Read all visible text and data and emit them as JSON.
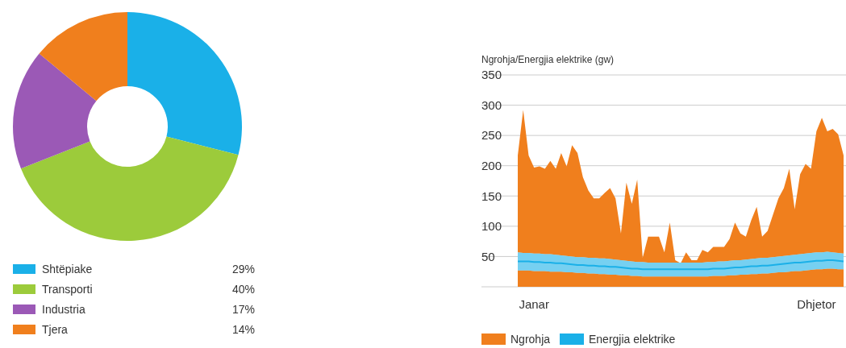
{
  "chart_data": [
    {
      "type": "donut",
      "categories": [
        "Shtëpiake",
        "Transporti",
        "Industria",
        "Tjera"
      ],
      "values": [
        29,
        40,
        17,
        14
      ],
      "colors": [
        "#1ab0e8",
        "#9ccb3b",
        "#9b59b6",
        "#f07f1d"
      ],
      "value_labels": [
        "29%",
        "40%",
        "17%",
        "14%"
      ],
      "legend": "bottom"
    },
    {
      "type": "area",
      "ylabel": "Ngrohja/Energjia elektrike (gw)",
      "ylim": [
        0,
        350
      ],
      "yticks": [
        50,
        100,
        150,
        200,
        250,
        300,
        350
      ],
      "grid": "y",
      "legend": "bottom",
      "categories": [
        null,
        null,
        null,
        "Janar",
        null,
        null,
        null,
        null,
        null,
        null,
        null,
        null,
        null,
        null,
        null,
        null,
        null,
        null,
        null,
        null,
        null,
        null,
        null,
        null,
        null,
        null,
        null,
        null,
        null,
        null,
        null,
        null,
        null,
        null,
        null,
        null,
        null,
        null,
        null,
        null,
        null,
        null,
        null,
        null,
        null,
        null,
        null,
        null,
        null,
        null,
        null,
        null,
        null,
        null,
        null,
        "Dhjetor",
        null,
        null,
        null,
        null,
        null
      ],
      "series": [
        {
          "name": "Ngrohja",
          "color": "#f07f1d",
          "values": [
            217,
            292,
            217,
            197,
            199,
            195,
            208,
            195,
            221,
            199,
            234,
            221,
            181,
            159,
            146,
            146,
            155,
            163,
            146,
            88,
            172,
            137,
            177,
            48,
            83,
            83,
            83,
            57,
            106,
            44,
            39,
            57,
            44,
            44,
            61,
            57,
            66,
            66,
            66,
            79,
            106,
            88,
            83,
            110,
            132,
            83,
            92,
            119,
            146,
            163,
            195,
            128,
            186,
            203,
            195,
            257,
            279,
            257,
            261,
            252,
            217
          ]
        },
        {
          "name": "Energjia elektrike",
          "color": "#1ab0e8",
          "type": "line",
          "values": [
            42,
            42,
            42,
            41,
            41,
            40,
            40,
            39,
            39,
            38,
            37,
            36,
            36,
            35,
            35,
            34,
            34,
            33,
            33,
            32,
            31,
            30,
            30,
            29,
            29,
            29,
            29,
            29,
            29,
            29,
            29,
            29,
            29,
            29,
            29,
            29,
            30,
            30,
            30,
            31,
            32,
            32,
            33,
            34,
            34,
            35,
            35,
            36,
            37,
            38,
            39,
            40,
            40,
            41,
            42,
            43,
            43,
            44,
            44,
            43,
            42
          ],
          "upper": [
            57,
            56,
            56,
            55,
            55,
            54,
            54,
            53,
            52,
            51,
            50,
            49,
            49,
            48,
            48,
            47,
            47,
            46,
            45,
            44,
            43,
            42,
            41,
            41,
            40,
            40,
            40,
            40,
            40,
            40,
            40,
            40,
            40,
            40,
            40,
            41,
            41,
            42,
            42,
            43,
            44,
            44,
            45,
            46,
            47,
            48,
            48,
            49,
            50,
            51,
            52,
            53,
            54,
            55,
            56,
            57,
            57,
            58,
            57,
            56,
            55
          ],
          "lower": [
            27,
            27,
            27,
            26,
            26,
            26,
            25,
            25,
            25,
            24,
            24,
            23,
            23,
            22,
            22,
            21,
            21,
            20,
            20,
            19,
            19,
            18,
            18,
            17,
            17,
            17,
            17,
            17,
            17,
            17,
            17,
            17,
            17,
            17,
            17,
            17,
            18,
            18,
            18,
            19,
            19,
            20,
            20,
            21,
            21,
            22,
            22,
            23,
            24,
            24,
            25,
            26,
            26,
            27,
            28,
            29,
            29,
            30,
            30,
            29,
            29
          ]
        }
      ]
    }
  ]
}
